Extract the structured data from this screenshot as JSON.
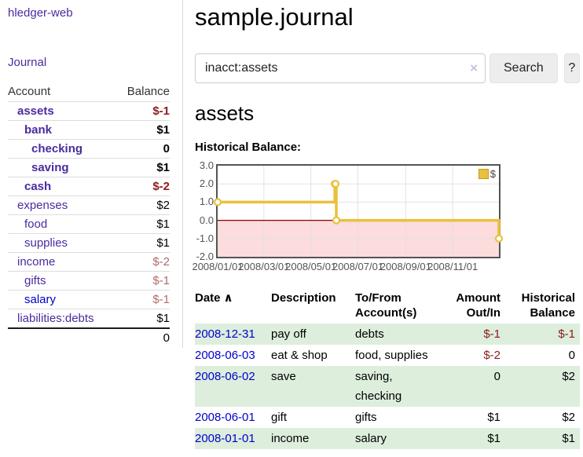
{
  "app": {
    "brand": "hledger-web"
  },
  "sidebar": {
    "nav": [
      {
        "label": "Journal"
      }
    ],
    "accounts_table": {
      "headers": {
        "account": "Account",
        "balance": "Balance"
      },
      "rows": [
        {
          "account": "assets",
          "indent": 1,
          "bold": true,
          "balance": "$-1",
          "negative": true
        },
        {
          "account": "bank",
          "indent": 2,
          "bold": true,
          "balance": "$1"
        },
        {
          "account": "checking",
          "indent": 3,
          "bold": true,
          "balance": "0"
        },
        {
          "account": "saving",
          "indent": 3,
          "bold": true,
          "balance": "$1"
        },
        {
          "account": "cash",
          "indent": 2,
          "bold": true,
          "balance": "$-2",
          "negative": true
        },
        {
          "account": "expenses",
          "indent": 1,
          "balance": "$2"
        },
        {
          "account": "food",
          "indent": 2,
          "balance": "$1"
        },
        {
          "account": "supplies",
          "indent": 2,
          "balance": "$1"
        },
        {
          "account": "income",
          "indent": 1,
          "balance": "$-2",
          "negative": true
        },
        {
          "account": "gifts",
          "indent": 2,
          "balance": "$-1",
          "negative": true
        },
        {
          "account": "salary",
          "indent": 2,
          "blue": true,
          "balance": "$-1",
          "negative": true
        },
        {
          "account": "liabilities:debts",
          "indent": 1,
          "balance": "$1"
        }
      ],
      "total": "0"
    }
  },
  "main": {
    "title": "sample.journal",
    "search": {
      "value": "inacct:assets",
      "clear_icon": "×",
      "button": "Search",
      "help_button": "?"
    },
    "account_heading": "assets",
    "chart_label": "Historical Balance:"
  },
  "chart_data": {
    "type": "line",
    "title": "Historical Balance:",
    "x_range": [
      "2008-01-01",
      "2008-12-31"
    ],
    "ylim": [
      -2,
      3
    ],
    "yticks": [
      {
        "v": 3,
        "label": "3.0"
      },
      {
        "v": 2,
        "label": "2.0"
      },
      {
        "v": 1,
        "label": "1.0"
      },
      {
        "v": 0,
        "label": "0.0"
      },
      {
        "v": -1,
        "label": "-1.0"
      },
      {
        "v": -2,
        "label": "-2.0"
      }
    ],
    "xticks": [
      {
        "date": "2008-01-01",
        "label": "2008/01/01"
      },
      {
        "date": "2008-03-01",
        "label": "2008/03/01"
      },
      {
        "date": "2008-05-01",
        "label": "2008/05/01"
      },
      {
        "date": "2008-07-01",
        "label": "2008/07/01"
      },
      {
        "date": "2008-09-01",
        "label": "2008/09/01"
      },
      {
        "date": "2008-11-01",
        "label": "2008/11/01"
      }
    ],
    "series": [
      {
        "name": "$",
        "color": "#e9c13d",
        "marker_fill": "#ffffff",
        "step": true,
        "points": [
          {
            "date": "2008-01-01",
            "value": 1
          },
          {
            "date": "2008-06-01",
            "value": 2
          },
          {
            "date": "2008-06-02",
            "value": 2
          },
          {
            "date": "2008-06-03",
            "value": 0
          },
          {
            "date": "2008-12-31",
            "value": -1
          }
        ]
      }
    ],
    "negative_region_fill": "#fcdcdc",
    "zero_line_color": "#8b0000",
    "grid_color": "#e2e2e2",
    "border_color": "#545454",
    "legend_position": "top-right"
  },
  "register_table": {
    "sort_icon": "∧",
    "headers": {
      "date": "Date",
      "description": "Description",
      "accounts": "To/From Account(s)",
      "amount": "Amount Out/In",
      "balance": "Historical Balance"
    },
    "rows": [
      {
        "date": "2008-12-31",
        "description": "pay off",
        "accounts": "debts",
        "amount": "$-1",
        "amount_negative": true,
        "balance": "$-1",
        "balance_negative": true
      },
      {
        "date": "2008-06-03",
        "description": "eat & shop",
        "accounts": "food, supplies",
        "amount": "$-2",
        "amount_negative": true,
        "balance": "0"
      },
      {
        "date": "2008-06-02",
        "description": "save",
        "accounts": "saving, checking",
        "amount": "0",
        "balance": "$2"
      },
      {
        "date": "2008-06-01",
        "description": "gift",
        "accounts": "gifts",
        "amount": "$1",
        "balance": "$2"
      },
      {
        "date": "2008-01-01",
        "description": "income",
        "accounts": "salary",
        "amount": "$1",
        "balance": "$1"
      }
    ]
  }
}
